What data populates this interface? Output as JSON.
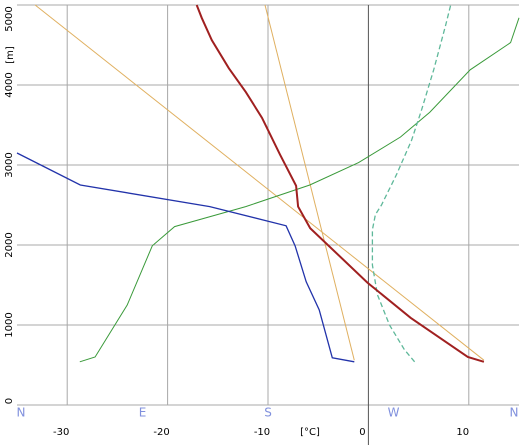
{
  "chart_data": {
    "type": "line",
    "xlabel": "[°C]",
    "ylabel": "[m]",
    "xlim": [
      -35,
      15
    ],
    "xticks": [
      -30,
      -20,
      -10,
      0,
      10
    ],
    "ylim": [
      0,
      5000
    ],
    "yticks": [
      0,
      1000,
      2000,
      3000,
      4000,
      5000
    ],
    "x2lim": [
      0,
      360
    ],
    "x2ticks": [
      {
        "value": 0,
        "label": "N"
      },
      {
        "value": 90,
        "label": "E"
      },
      {
        "value": 180,
        "label": "S"
      },
      {
        "value": 270,
        "label": "W"
      },
      {
        "value": 360,
        "label": "N"
      }
    ],
    "grid": true,
    "series": [
      {
        "color": "#e0b060",
        "linewidth": 1,
        "x": [
          -33.2,
          11.5
        ],
        "y": [
          5000,
          560
        ]
      },
      {
        "color": "#e0b060",
        "linewidth": 1,
        "x": [
          -10.3,
          -1.4
        ],
        "y": [
          5000,
          560
        ]
      },
      {
        "color": "#3a9a3a",
        "linewidth": 1,
        "axis": "x2",
        "x": [
          45,
          56,
          79,
          97,
          113,
          164,
          210,
          245,
          275,
          296,
          325,
          354,
          360
        ],
        "y": [
          540,
          600,
          1250,
          1990,
          2230,
          2480,
          2750,
          3030,
          3350,
          3660,
          4190,
          4530,
          4840
        ]
      },
      {
        "color": "#5fb89a",
        "linewidth": 1.3,
        "style": "dashed",
        "x": [
          4.6,
          3.6,
          2.1,
          0.9,
          0.4,
          0.4,
          0.7,
          1.3,
          2.8,
          4.3,
          5.3,
          6.5,
          7.7,
          8.2
        ],
        "y": [
          540,
          690,
          1000,
          1380,
          1750,
          2190,
          2380,
          2500,
          2880,
          3310,
          3690,
          4190,
          4750,
          5000
        ]
      },
      {
        "color": "#2233aa",
        "linewidth": 1.3,
        "x": [
          -1.4,
          -3.6,
          -4.9,
          -6.2,
          -7.3,
          -8.2,
          -15.8,
          -28.7,
          -35
        ],
        "y": [
          540,
          590,
          1190,
          1540,
          1990,
          2240,
          2480,
          2750,
          3150
        ]
      },
      {
        "color": "#a02020",
        "linewidth": 2,
        "x": [
          11.5,
          9.9,
          4.2,
          -0.1,
          -5.8,
          -7.0,
          -7.2,
          -8.8,
          -10.6,
          -12.2,
          -13.9,
          -15.6,
          -16.6,
          -17.1
        ],
        "y": [
          540,
          600,
          1090,
          1530,
          2210,
          2480,
          2740,
          3130,
          3590,
          3910,
          4210,
          4560,
          4840,
          5000
        ]
      }
    ]
  }
}
